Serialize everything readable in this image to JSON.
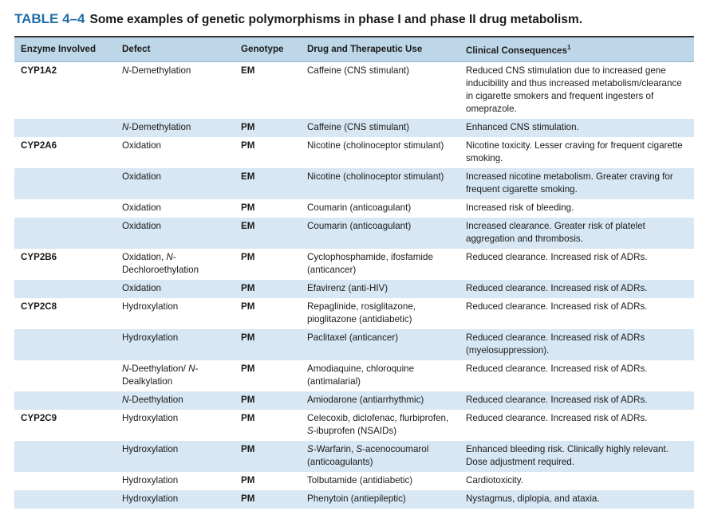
{
  "title": {
    "label": "TABLE 4–4",
    "text": "Some examples of genetic polymorphisms in phase I and phase II drug metabolism."
  },
  "table": {
    "header": [
      "Enzyme Involved",
      "Defect",
      "Genotype",
      "Drug and Therapeutic Use",
      {
        "text": "Clinical Consequences",
        "note": "1"
      }
    ],
    "rows": [
      [
        "CYP1A2",
        [
          {
            "text": "N",
            "italic": true
          },
          "-Demethylation"
        ],
        "EM",
        "Caffeine (CNS stimulant)",
        "Reduced CNS stimulation due to increased gene inducibility and thus increased metabolism/clearance in cigarette smokers and frequent ingesters of omeprazole."
      ],
      [
        null,
        [
          {
            "text": "N",
            "italic": true
          },
          "-Demethylation"
        ],
        "PM",
        "Caffeine (CNS stimulant)",
        "Enhanced CNS stimulation."
      ],
      [
        "CYP2A6",
        "Oxidation",
        "PM",
        "Nicotine (cholinoceptor stimulant)",
        "Nicotine toxicity. Lesser craving for frequent cigarette smoking."
      ],
      [
        null,
        "Oxidation",
        "EM",
        "Nicotine (cholinoceptor stimulant)",
        "Increased nicotine metabolism. Greater craving for frequent cigarette smoking."
      ],
      [
        null,
        "Oxidation",
        "PM",
        "Coumarin (anticoagulant)",
        "Increased risk of bleeding."
      ],
      [
        null,
        "Oxidation",
        "EM",
        "Coumarin (anticoagulant)",
        "Increased clearance. Greater risk of platelet aggregation and thrombosis."
      ],
      [
        "CYP2B6",
        [
          "Oxidation, ",
          {
            "text": "N",
            "italic": true
          },
          "-Dechloroethylation"
        ],
        "PM",
        "Cyclophosphamide, ifosfamide (anticancer)",
        "Reduced clearance. Increased risk of ADRs."
      ],
      [
        null,
        "Oxidation",
        "PM",
        "Efavirenz (anti-HIV)",
        "Reduced clearance. Increased risk of ADRs."
      ],
      [
        "CYP2C8",
        "Hydroxylation",
        "PM",
        "Repaglinide, rosiglitazone, pioglitazone (antidiabetic)",
        "Reduced clearance. Increased risk of ADRs."
      ],
      [
        null,
        "Hydroxylation",
        "PM",
        "Paclitaxel (anticancer)",
        "Reduced clearance. Increased risk of ADRs (myelosuppression)."
      ],
      [
        null,
        [
          {
            "text": "N",
            "italic": true
          },
          "-Deethylation/ ",
          {
            "text": "N",
            "italic": true
          },
          "-Dealkylation"
        ],
        "PM",
        "Amodiaquine, chloroquine (antimalarial)",
        "Reduced clearance. Increased risk of ADRs."
      ],
      [
        null,
        [
          {
            "text": "N",
            "italic": true
          },
          "-Deethylation"
        ],
        "PM",
        "Amiodarone (antiarrhythmic)",
        "Reduced clearance. Increased risk of ADRs."
      ],
      [
        "CYP2C9",
        "Hydroxylation",
        "PM",
        [
          "Celecoxib, diclofenac, flurbiprofen, ",
          {
            "text": "S",
            "italic": true
          },
          "-ibuprofen (NSAIDs)"
        ],
        "Reduced clearance. Increased risk of ADRs."
      ],
      [
        null,
        "Hydroxylation",
        "PM",
        [
          {
            "text": "S",
            "italic": true
          },
          "-Warfarin, ",
          {
            "text": "S",
            "italic": true
          },
          "-acenocoumarol (anticoagulants)"
        ],
        "Enhanced bleeding risk. Clinically highly relevant. Dose adjustment required."
      ],
      [
        null,
        "Hydroxylation",
        "PM",
        "Tolbutamide (antidiabetic)",
        "Cardiotoxicity."
      ],
      [
        null,
        "Hydroxylation",
        "PM",
        "Phenytoin (antiepileptic)",
        "Nystagmus, diplopia, and ataxia."
      ]
    ]
  }
}
